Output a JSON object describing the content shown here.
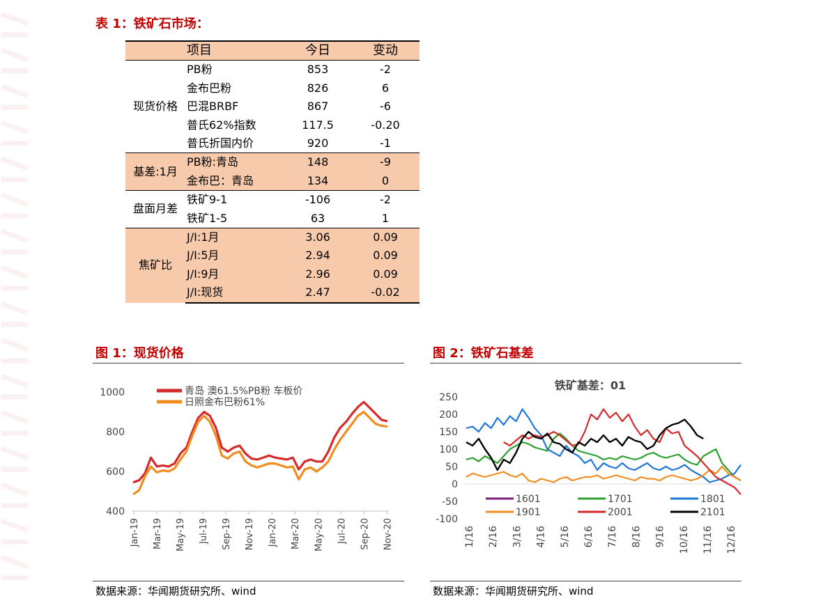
{
  "table_title": "表 1：铁矿石市场：",
  "table": {
    "headers": [
      "项目",
      "今日",
      "变动"
    ],
    "groups": [
      {
        "category": "现货价格",
        "shaded": false,
        "rows": [
          {
            "item": "PB粉",
            "today": "853",
            "change": "-2"
          },
          {
            "item": "金布巴粉",
            "today": "826",
            "change": "6"
          },
          {
            "item": "巴混BRBF",
            "today": "867",
            "change": "-6"
          },
          {
            "item": "普氏62%指数",
            "today": "117.5",
            "change": "-0.20"
          },
          {
            "item": "普氏折国内价",
            "today": "920",
            "change": "-1"
          }
        ]
      },
      {
        "category": "基差:1月",
        "shaded": true,
        "rows": [
          {
            "item": "PB粉:青岛",
            "today": "148",
            "change": "-9"
          },
          {
            "item": "金布巴：青岛",
            "today": "134",
            "change": "0"
          }
        ]
      },
      {
        "category": "盘面月差",
        "shaded": false,
        "rows": [
          {
            "item": "铁矿9-1",
            "today": "-106",
            "change": "-2"
          },
          {
            "item": "铁矿1-5",
            "today": "63",
            "change": "1"
          }
        ]
      },
      {
        "category": "焦矿比",
        "shaded": true,
        "rows": [
          {
            "item": "J/I:1月",
            "today": "3.06",
            "change": "0.09"
          },
          {
            "item": "J/I:5月",
            "today": "2.94",
            "change": "0.09"
          },
          {
            "item": "J/I:9月",
            "today": "2.96",
            "change": "0.09"
          },
          {
            "item": "J/I:现货",
            "today": "2.47",
            "change": "-0.02"
          }
        ]
      }
    ]
  },
  "fig1_title": "图 1：现货价格",
  "fig2_title": "图 2：铁矿石基差",
  "fig1_source": "数据来源：华闻期货研究所、wind",
  "fig2_source": "数据来源：华闻期货研究所、wind",
  "watermark_color": "#c00000",
  "chart_data": [
    {
      "type": "line",
      "title": "",
      "ylim": [
        400,
        1000
      ],
      "yticks": [
        400,
        600,
        800,
        1000
      ],
      "x_tick_labels": [
        "Jan-19",
        "Mar-19",
        "May-19",
        "Jul-19",
        "Sep-19",
        "Nov-19",
        "Jan-20",
        "Mar-20",
        "May-20",
        "Jul-20",
        "Sep-20",
        "Nov-20"
      ],
      "legend_position": "top-left",
      "grid": false,
      "series": [
        {
          "name": "青岛 澳61.5%PB粉 车板价",
          "color": "#d42a2a",
          "values": [
            545,
            555,
            590,
            670,
            625,
            630,
            625,
            640,
            690,
            720,
            800,
            870,
            900,
            880,
            820,
            720,
            700,
            720,
            730,
            690,
            665,
            660,
            670,
            680,
            670,
            665,
            660,
            670,
            610,
            650,
            660,
            650,
            650,
            700,
            770,
            820,
            850,
            890,
            925,
            950,
            920,
            890,
            860,
            853
          ]
        },
        {
          "name": "日照金布巴粉61%",
          "color": "#f28c1e",
          "values": [
            485,
            505,
            575,
            625,
            595,
            605,
            600,
            615,
            660,
            700,
            780,
            850,
            880,
            850,
            780,
            680,
            665,
            690,
            700,
            650,
            630,
            620,
            630,
            640,
            640,
            630,
            620,
            625,
            560,
            610,
            620,
            600,
            620,
            650,
            710,
            760,
            800,
            840,
            880,
            900,
            870,
            840,
            830,
            826
          ]
        }
      ]
    },
    {
      "type": "line",
      "title": "铁矿基差：01",
      "ylim": [
        -100,
        250
      ],
      "yticks": [
        -100,
        -50,
        0,
        50,
        100,
        150,
        200,
        250
      ],
      "x_tick_labels": [
        "1/16",
        "2/16",
        "3/16",
        "4/16",
        "5/16",
        "6/16",
        "7/16",
        "8/16",
        "9/16",
        "10/16",
        "11/16",
        "12/16"
      ],
      "legend_position": "bottom",
      "grid": false,
      "series": [
        {
          "name": "1601",
          "color": "#7b1f78",
          "values": []
        },
        {
          "name": "1701",
          "color": "#2ca02c",
          "values": [
            70,
            75,
            65,
            80,
            70,
            60,
            80,
            100,
            110,
            120,
            115,
            105,
            100,
            95,
            130,
            145,
            130,
            110,
            95,
            90,
            85,
            80,
            70,
            75,
            70,
            80,
            75,
            70,
            75,
            85,
            90,
            80,
            75,
            80,
            85,
            70,
            60,
            55,
            80,
            90,
            100,
            60,
            40,
            20,
            10
          ]
        },
        {
          "name": "1801",
          "color": "#1f77d6",
          "values": [
            160,
            165,
            150,
            175,
            160,
            190,
            170,
            195,
            180,
            215,
            190,
            160,
            140,
            100,
            90,
            80,
            110,
            90,
            80,
            60,
            70,
            40,
            60,
            50,
            45,
            60,
            45,
            40,
            50,
            60,
            45,
            40,
            50,
            40,
            45,
            55,
            40,
            30,
            20,
            5,
            10,
            15,
            25,
            30,
            55
          ]
        },
        {
          "name": "1901",
          "color": "#f28c1e",
          "values": [
            20,
            30,
            25,
            20,
            25,
            30,
            35,
            25,
            20,
            30,
            10,
            5,
            15,
            10,
            5,
            15,
            20,
            10,
            15,
            20,
            20,
            25,
            15,
            20,
            25,
            20,
            15,
            10,
            20,
            15,
            15,
            10,
            20,
            25,
            20,
            15,
            10,
            15,
            25,
            40,
            30,
            50,
            30,
            20,
            10
          ]
        },
        {
          "name": "2001",
          "color": "#d42a2a",
          "values": [
            null,
            null,
            null,
            null,
            null,
            null,
            120,
            110,
            125,
            140,
            130,
            140,
            135,
            140,
            150,
            140,
            125,
            110,
            115,
            150,
            200,
            185,
            215,
            190,
            205,
            180,
            200,
            165,
            140,
            155,
            130,
            120,
            160,
            145,
            150,
            110,
            95,
            80,
            60,
            40,
            20,
            10,
            0,
            -10,
            -30
          ]
        },
        {
          "name": "2101",
          "color": "#000000",
          "values": [
            120,
            110,
            130,
            100,
            75,
            40,
            70,
            60,
            90,
            130,
            150,
            135,
            130,
            145,
            120,
            115,
            100,
            90,
            120,
            110,
            130,
            120,
            140,
            120,
            130,
            110,
            135,
            125,
            120,
            100,
            110,
            140,
            160,
            170,
            175,
            185,
            165,
            140,
            130,
            null,
            null,
            null,
            null,
            null,
            null
          ]
        }
      ]
    }
  ]
}
